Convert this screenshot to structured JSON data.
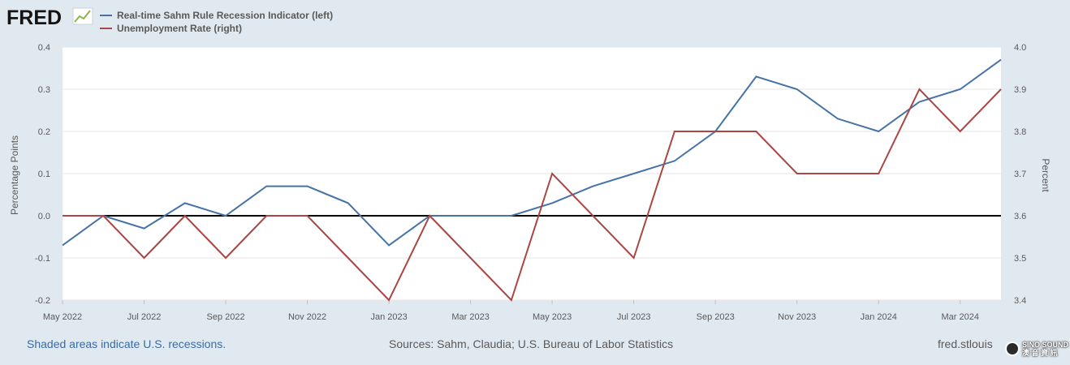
{
  "logo": {
    "text": "FRED"
  },
  "legend": {
    "series1_label": "Real-time Sahm Rule Recession Indicator (left)",
    "series2_label": "Unemployment Rate (right)"
  },
  "footer": {
    "recession_note": "Shaded areas indicate U.S. recessions.",
    "sources": "Sources: Sahm, Claudia; U.S. Bureau of Labor Statistics",
    "site": "fred.stlouis"
  },
  "watermark": {
    "line1": "SINO SOUND",
    "line2": "澳 音 資 訊"
  },
  "colors": {
    "background": "#e1e9f0",
    "plot_background": "#ffffff",
    "series1": "#4572a7",
    "series2": "#aa4643",
    "zero_line": "#000000"
  },
  "chart_data": {
    "type": "line",
    "grid": true,
    "legend_position": "top-left",
    "x_tick_labels": [
      "May 2022",
      "Jul 2022",
      "Sep 2022",
      "Nov 2022",
      "Jan 2023",
      "Mar 2023",
      "May 2023",
      "Jul 2023",
      "Sep 2023",
      "Nov 2023",
      "Jan 2024",
      "Mar 2024"
    ],
    "x": [
      "2022-05",
      "2022-06",
      "2022-07",
      "2022-08",
      "2022-09",
      "2022-10",
      "2022-11",
      "2022-12",
      "2023-01",
      "2023-02",
      "2023-03",
      "2023-04",
      "2023-05",
      "2023-06",
      "2023-07",
      "2023-08",
      "2023-09",
      "2023-10",
      "2023-11",
      "2023-12",
      "2024-01",
      "2024-02",
      "2024-03",
      "2024-04"
    ],
    "ylabel_left": "Percentage Points",
    "ylabel_right": "Percent",
    "ylim_left": [
      -0.2,
      0.4
    ],
    "ylim_right": [
      3.4,
      4.0
    ],
    "yticks_left": [
      "0.4",
      "0.3",
      "0.2",
      "0.1",
      "0.0",
      "-0.1",
      "-0.2"
    ],
    "yticks_right": [
      "4.0",
      "3.9",
      "3.8",
      "3.7",
      "3.6",
      "3.5",
      "3.4"
    ],
    "reference_line_left": 0.0,
    "series": [
      {
        "name": "Real-time Sahm Rule Recession Indicator (left)",
        "axis": "left",
        "values": [
          -0.07,
          0.0,
          -0.03,
          0.03,
          0.0,
          0.07,
          0.07,
          0.03,
          -0.07,
          0.0,
          0.0,
          0.0,
          0.03,
          0.07,
          0.1,
          0.13,
          0.2,
          0.33,
          0.3,
          0.23,
          0.2,
          0.27,
          0.3,
          0.37
        ]
      },
      {
        "name": "Unemployment Rate (right)",
        "axis": "right",
        "values": [
          3.6,
          3.6,
          3.5,
          3.6,
          3.5,
          3.6,
          3.6,
          3.5,
          3.4,
          3.6,
          3.5,
          3.4,
          3.7,
          3.6,
          3.5,
          3.8,
          3.8,
          3.8,
          3.7,
          3.7,
          3.7,
          3.9,
          3.8,
          3.9
        ]
      }
    ]
  }
}
